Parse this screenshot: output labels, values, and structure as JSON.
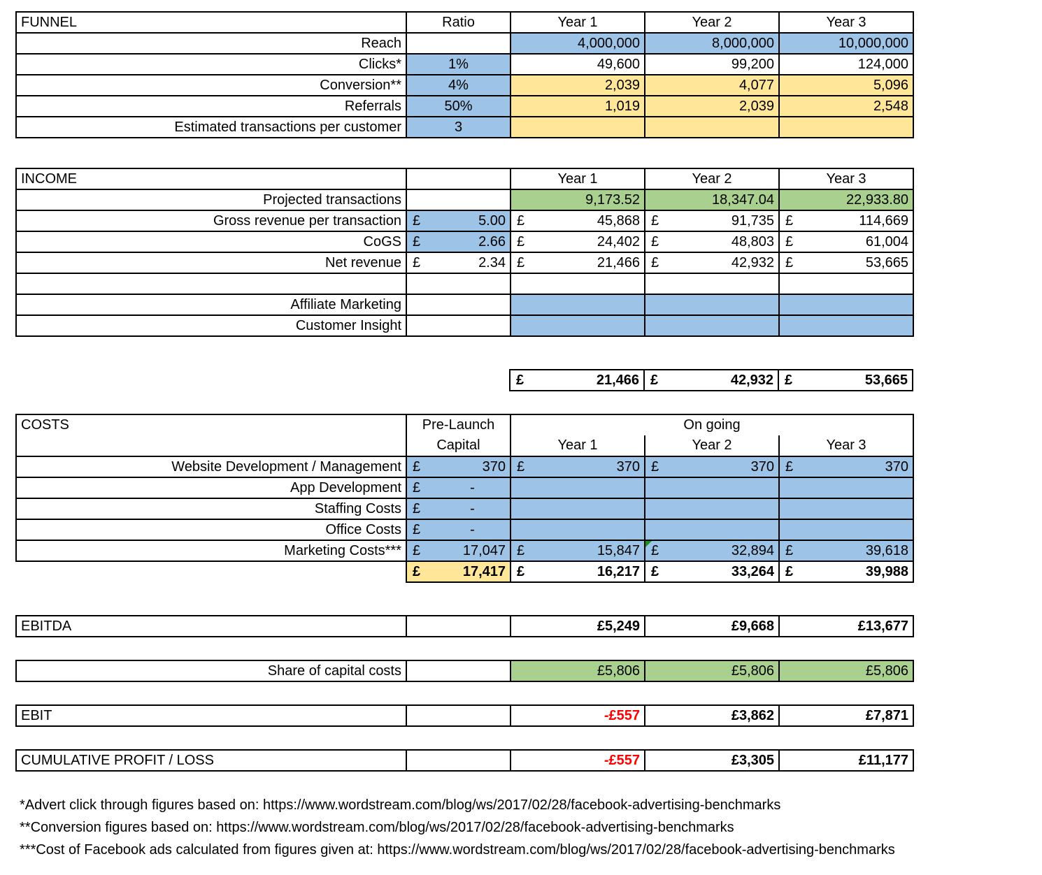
{
  "funnel": {
    "title": "FUNNEL",
    "ratio_header": "Ratio",
    "years": [
      "Year 1",
      "Year 2",
      "Year 3"
    ],
    "rows": [
      {
        "label": "Reach",
        "ratio": "",
        "values": [
          "4,000,000",
          "8,000,000",
          "10,000,000"
        ]
      },
      {
        "label": "Clicks*",
        "ratio": "1%",
        "values": [
          "49,600",
          "99,200",
          "124,000"
        ]
      },
      {
        "label": "Conversion**",
        "ratio": "4%",
        "values": [
          "2,039",
          "4,077",
          "5,096"
        ]
      },
      {
        "label": "Referrals",
        "ratio": "50%",
        "values": [
          "1,019",
          "2,039",
          "2,548"
        ]
      },
      {
        "label": "Estimated transactions per customer",
        "ratio": "3",
        "values": [
          "",
          "",
          ""
        ]
      }
    ]
  },
  "income": {
    "title": "INCOME",
    "years": [
      "Year 1",
      "Year 2",
      "Year 3"
    ],
    "currency": "£",
    "projected": {
      "label": "Projected transactions",
      "values": [
        "9,173.52",
        "18,347.04",
        "22,933.80"
      ]
    },
    "gross": {
      "label": "Gross revenue per transaction",
      "ratio": "5.00",
      "values": [
        "45,868",
        "91,735",
        "114,669"
      ]
    },
    "cogs": {
      "label": "CoGS",
      "ratio": "2.66",
      "values": [
        "24,402",
        "48,803",
        "61,004"
      ]
    },
    "net": {
      "label": "Net revenue",
      "ratio": "2.34",
      "values": [
        "21,466",
        "42,932",
        "53,665"
      ]
    },
    "affiliate": {
      "label": "Affiliate Marketing"
    },
    "insight": {
      "label": "Customer Insight"
    },
    "totals": [
      "21,466",
      "42,932",
      "53,665"
    ]
  },
  "costs": {
    "title": "COSTS",
    "prelaunch": "Pre-Launch",
    "capital": "Capital",
    "ongoing": "On going",
    "years": [
      "Year 1",
      "Year 2",
      "Year 3"
    ],
    "currency": "£",
    "rows": [
      {
        "label": "Website Development / Management",
        "capital": "370",
        "values": [
          "370",
          "370",
          "370"
        ]
      },
      {
        "label": "App Development",
        "capital": "-",
        "values": [
          "",
          "",
          ""
        ]
      },
      {
        "label": "Staffing Costs",
        "capital": "-",
        "values": [
          "",
          "",
          ""
        ]
      },
      {
        "label": "Office Costs",
        "capital": "-",
        "values": [
          "",
          "",
          ""
        ]
      },
      {
        "label": "Marketing Costs***",
        "capital": "17,047",
        "values": [
          "15,847",
          "32,894",
          "39,618"
        ]
      }
    ],
    "totals": {
      "capital": "17,417",
      "values": [
        "16,217",
        "33,264",
        "39,988"
      ]
    }
  },
  "ebitda": {
    "label": "EBITDA",
    "values": [
      "£5,249",
      "£9,668",
      "£13,677"
    ]
  },
  "share": {
    "label": "Share of capital costs",
    "values": [
      "£5,806",
      "£5,806",
      "£5,806"
    ]
  },
  "ebit": {
    "label": "EBIT",
    "values": [
      "-£557",
      "£3,862",
      "£7,871"
    ]
  },
  "cumulative": {
    "label": "CUMULATIVE PROFIT / LOSS",
    "values": [
      "-£557",
      "£3,305",
      "£11,177"
    ]
  },
  "colors": {
    "blue": "#9dc3e6",
    "yellow": "#ffe699",
    "green": "#a9d08e",
    "negative": "#ff0000"
  },
  "notes": [
    "*Advert click through figures based on: https://www.wordstream.com/blog/ws/2017/02/28/facebook-advertising-benchmarks",
    "**Conversion figures based on: https://www.wordstream.com/blog/ws/2017/02/28/facebook-advertising-benchmarks",
    "***Cost of Facebook ads calculated from figures given at: https://www.wordstream.com/blog/ws/2017/02/28/facebook-advertising-benchmarks"
  ]
}
